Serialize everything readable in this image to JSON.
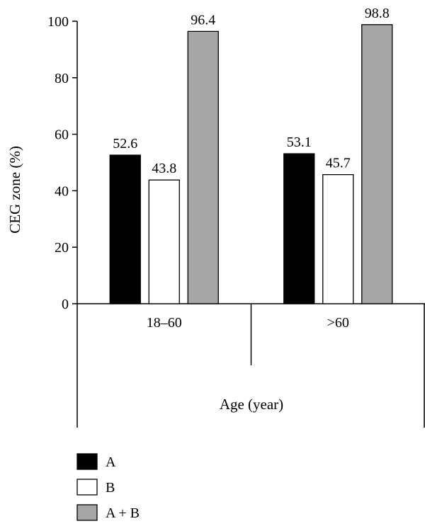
{
  "chart_data": {
    "type": "bar",
    "title": "",
    "xlabel": "Age (year)",
    "ylabel": "CEG zone (%)",
    "ylim": [
      0,
      100
    ],
    "yticks": [
      0,
      20,
      40,
      60,
      80,
      100
    ],
    "categories": [
      "18–60",
      ">60"
    ],
    "series": [
      {
        "name": "A",
        "color": "#000000",
        "values": [
          52.6,
          53.1
        ],
        "labels": [
          "52.6",
          "53.1"
        ]
      },
      {
        "name": "B",
        "color": "#ffffff",
        "values": [
          43.8,
          45.7
        ],
        "labels": [
          "43.8",
          "45.7"
        ]
      },
      {
        "name": "A + B",
        "color": "#a6a6a6",
        "values": [
          96.4,
          98.8
        ],
        "labels": [
          "96.4",
          "98.8"
        ]
      }
    ],
    "grid": false,
    "legend_position": "bottom-left"
  }
}
